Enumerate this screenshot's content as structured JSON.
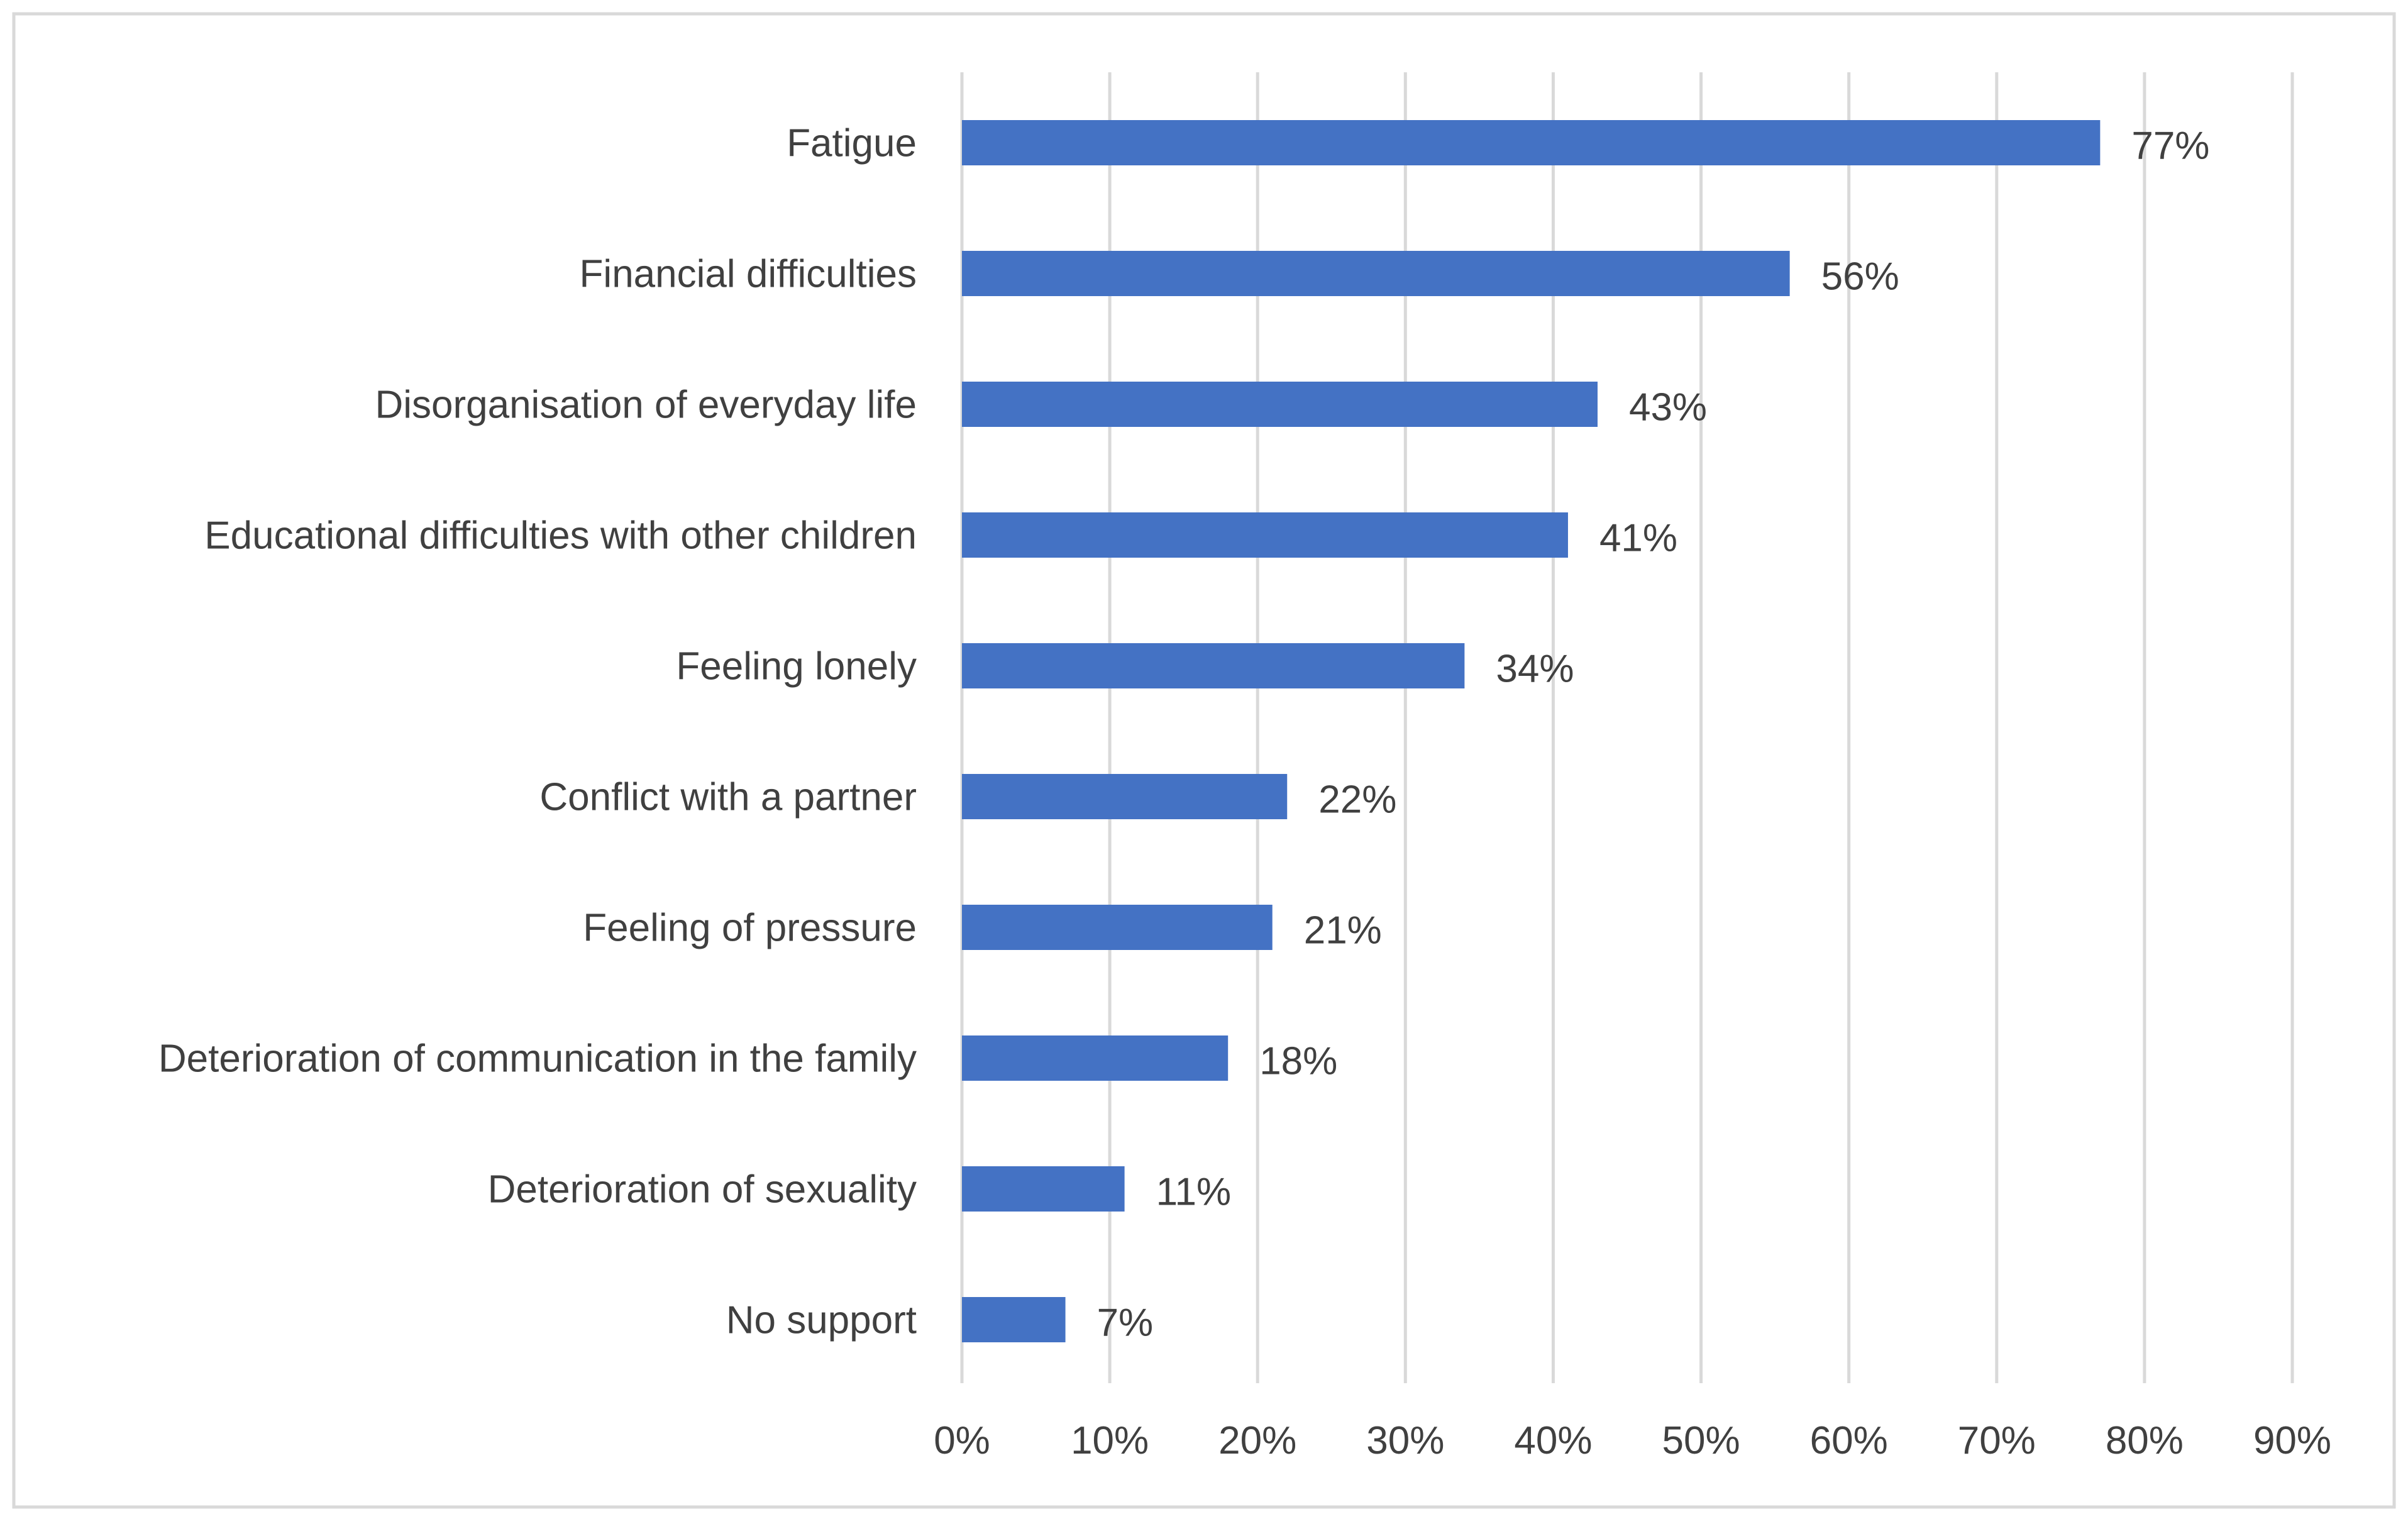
{
  "chart_data": {
    "type": "bar",
    "orientation": "horizontal",
    "title": "",
    "xlabel": "",
    "ylabel": "",
    "categories": [
      "Fatigue",
      "Financial difficulties",
      "Disorganisation of everyday life",
      "Educational difficulties with other children",
      "Feeling lonely",
      "Conflict with a partner",
      "Feeling of pressure",
      "Deterioration of communication in the family",
      "Deterioration of sexuality",
      "No support"
    ],
    "values": [
      77,
      56,
      43,
      41,
      34,
      22,
      21,
      18,
      11,
      7
    ],
    "data_labels": [
      "77%",
      "56%",
      "43%",
      "41%",
      "34%",
      "22%",
      "21%",
      "18%",
      "11%",
      "7%"
    ],
    "xlim": [
      0,
      90
    ],
    "x_ticks": [
      0,
      10,
      20,
      30,
      40,
      50,
      60,
      70,
      80,
      90
    ],
    "x_tick_labels": [
      "0%",
      "10%",
      "20%",
      "30%",
      "40%",
      "50%",
      "60%",
      "70%",
      "80%",
      "90%"
    ],
    "gridlines": "vertical",
    "legend": "none",
    "colors": {
      "bar": "#4472C4",
      "grid": "#D9D9D9",
      "text": "#404040",
      "frame": "#D9D9D9"
    }
  }
}
